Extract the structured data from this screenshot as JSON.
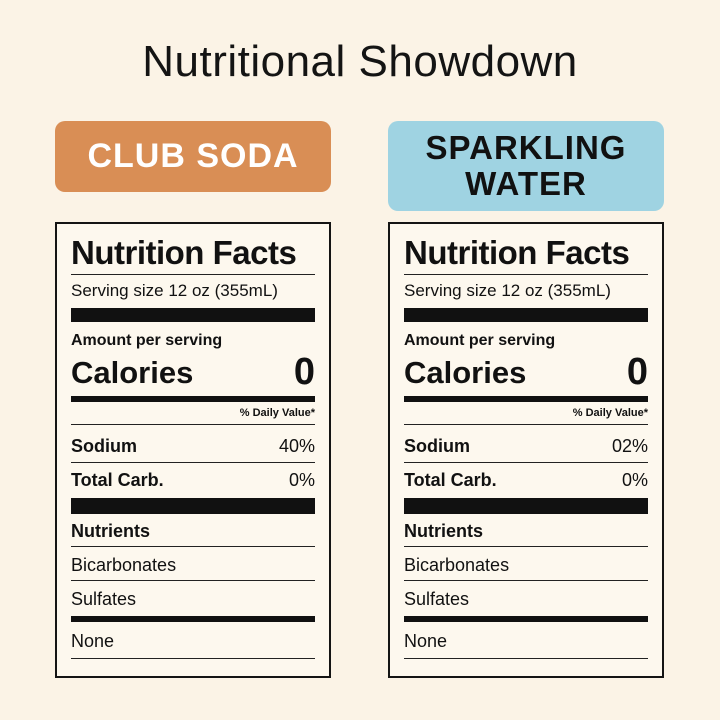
{
  "title": "Nutritional Showdown",
  "colors": {
    "background": "#fbf3e6",
    "club_soda_banner": "#d98e55",
    "sparkling_water_banner": "#9fd3e2"
  },
  "left": {
    "header": "CLUB SODA",
    "facts": {
      "heading": "Nutrition Facts",
      "serving": "Serving size 12 oz (355mL)",
      "amount_label": "Amount per serving",
      "calories_label": "Calories",
      "calories_value": "0",
      "dv_header": "% Daily Value*",
      "nutrients": [
        {
          "name": "Sodium",
          "value": "40%"
        },
        {
          "name": "Total Carb.",
          "value": "0%"
        }
      ],
      "section_label": "Nutrients",
      "items": [
        "Bicarbonates",
        "Sulfates"
      ],
      "footer": "None"
    }
  },
  "right": {
    "header_line1": "SPARKLING",
    "header_line2": "WATER",
    "facts": {
      "heading": "Nutrition Facts",
      "serving": "Serving size 12 oz (355mL)",
      "amount_label": "Amount per serving",
      "calories_label": "Calories",
      "calories_value": "0",
      "dv_header": "% Daily Value*",
      "nutrients": [
        {
          "name": "Sodium",
          "value": "02%"
        },
        {
          "name": "Total Carb.",
          "value": "0%"
        }
      ],
      "section_label": "Nutrients",
      "items": [
        "Bicarbonates",
        "Sulfates"
      ],
      "footer": "None"
    }
  }
}
